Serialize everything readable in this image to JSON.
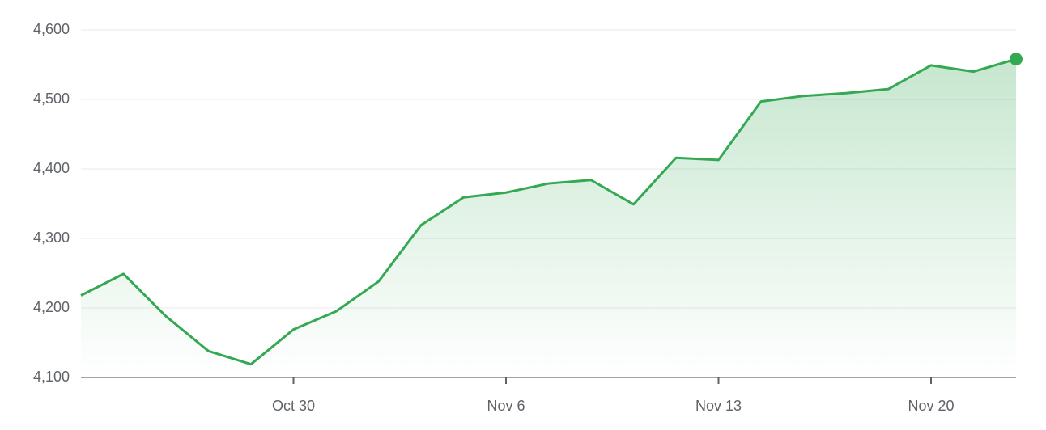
{
  "chart_data": {
    "type": "line",
    "categories": [
      null,
      null,
      null,
      null,
      null,
      "Oct 30",
      null,
      null,
      null,
      null,
      "Nov 6",
      null,
      null,
      null,
      null,
      "Nov 13",
      null,
      null,
      null,
      null,
      "Nov 20",
      null,
      null
    ],
    "values": [
      4218,
      4249,
      4188,
      4138,
      4119,
      4169,
      4195,
      4238,
      4319,
      4359,
      4366,
      4379,
      4384,
      4349,
      4416,
      4413,
      4497,
      4505,
      4509,
      4515,
      4549,
      4540,
      4558
    ],
    "color": "#34a853",
    "ylim": [
      4100,
      4600
    ],
    "yticks": [
      {
        "value": 4100,
        "label": "4,100"
      },
      {
        "value": 4200,
        "label": "4,200"
      },
      {
        "value": 4300,
        "label": "4,300"
      },
      {
        "value": 4400,
        "label": "4,400"
      },
      {
        "value": 4500,
        "label": "4,500"
      },
      {
        "value": 4600,
        "label": "4,600"
      }
    ],
    "grid": true
  }
}
